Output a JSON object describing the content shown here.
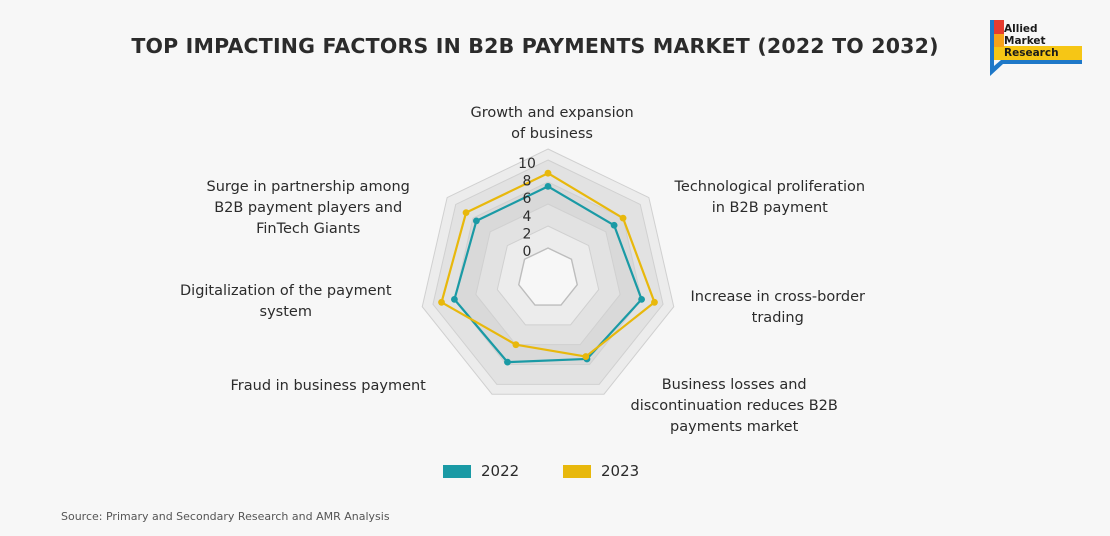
{
  "header": {
    "title": "TOP IMPACTING FACTORS IN B2B PAYMENTS MARKET (2022 TO 2032)"
  },
  "logo": {
    "lines": [
      "Allied",
      "Market",
      "Research"
    ],
    "colors": [
      "#e63c2f",
      "#f6a21a",
      "#f6c615",
      "#1e78c8"
    ]
  },
  "source": {
    "text": "Source: Primary and Secondary Research and AMR Analysis"
  },
  "chart_data": {
    "type": "radar",
    "title": "TOP IMPACTING FACTORS IN B2B PAYMENTS MARKET (2022 TO 2032)",
    "axes": [
      "Growth and expansion\nof business",
      "Technological proliferation\nin B2B payment",
      "Increase in cross-border\ntrading",
      "Business losses and\ndiscontinuation reduces B2B\npayments market",
      "Fraud in business payment",
      "Digitalization of the payment\nsystem",
      "Surge in partnership among\nB2B payment players and\nFinTech Giants"
    ],
    "ticks": [
      "0",
      "2",
      "4",
      "6",
      "8",
      "10"
    ],
    "rlim": [
      0,
      10
    ],
    "series": [
      {
        "name": "2022",
        "color": "#1a9aa5",
        "values": [
          7,
          6.2,
          7.5,
          6.8,
          7.2,
          7.5,
          7
        ]
      },
      {
        "name": "2023",
        "color": "#e8b80c",
        "values": [
          8.5,
          7.5,
          9,
          6.5,
          5,
          9,
          8.5
        ]
      }
    ],
    "grid": true,
    "legend_position": "bottom"
  }
}
